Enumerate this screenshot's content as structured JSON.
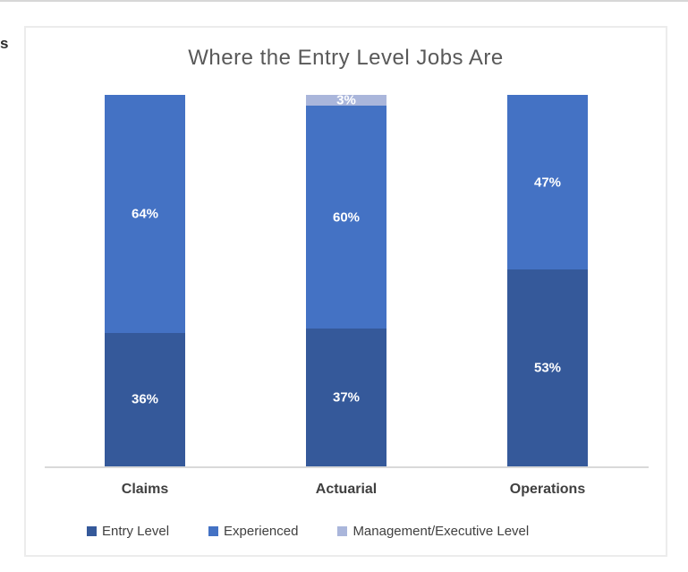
{
  "window": {
    "left_text_fragment": "s"
  },
  "chart_data": {
    "type": "bar",
    "stacked": true,
    "orientation": "vertical",
    "title": "Where the Entry Level Jobs Are",
    "categories": [
      "Claims",
      "Actuarial",
      "Operations"
    ],
    "series": [
      {
        "name": "Entry Level",
        "color": "#35599A",
        "values": [
          36,
          37,
          53
        ]
      },
      {
        "name": "Experienced",
        "color": "#4472C4",
        "values": [
          64,
          60,
          47
        ]
      },
      {
        "name": "Management/Executive Level",
        "color": "#AAB6DB",
        "values": [
          0,
          3,
          0
        ]
      }
    ],
    "data_label_format": "{value}%",
    "data_label_color": "#FFFFFF",
    "ylim": [
      0,
      100
    ],
    "grid": false,
    "legend_position": "bottom",
    "title_color": "#595959",
    "axis_line_color": "#D9D9D9",
    "category_label_color": "#404040",
    "legend_text_color": "#404040"
  }
}
